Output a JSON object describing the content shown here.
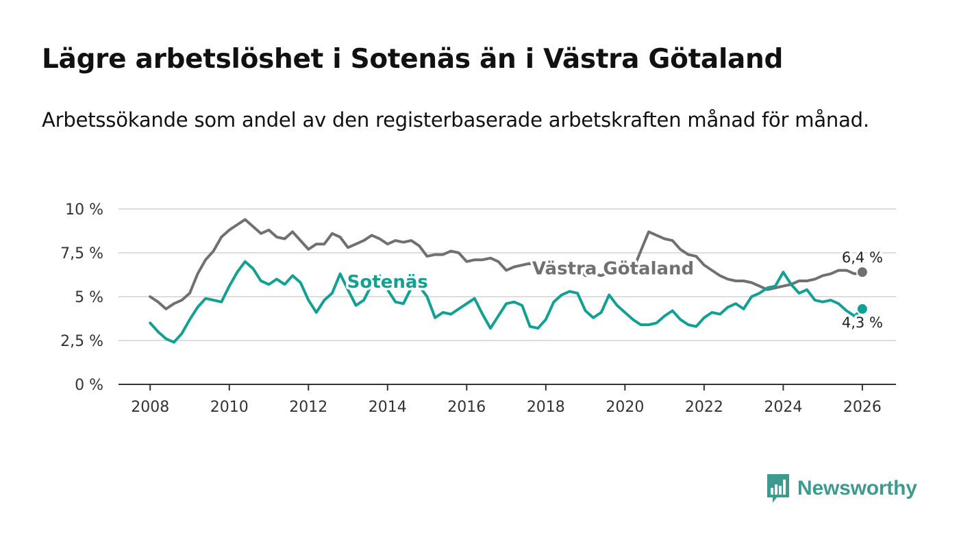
{
  "title": "Lägre arbetslöshet i Sotenäs än i Västra Götaland",
  "subtitle": "Arbetssökande som andel av den registerbaserade arbetskraften månad för månad.",
  "brand": "Newsworthy",
  "colors": {
    "vg": "#707073",
    "sotenas": "#13a094",
    "grid": "#dddddd",
    "axis": "#333333",
    "brand": "#3d9a8e"
  },
  "chart_data": {
    "type": "line",
    "title": "Lägre arbetslöshet i Sotenäs än i Västra Götaland",
    "xlabel": "",
    "ylabel": "",
    "xlim": [
      2007.2,
      2026.85
    ],
    "ylim": [
      0,
      10
    ],
    "x_ticks": [
      2008,
      2010,
      2012,
      2014,
      2016,
      2018,
      2020,
      2022,
      2024,
      2026
    ],
    "x_tick_labels": [
      "2008",
      "2010",
      "2012",
      "2014",
      "2016",
      "2018",
      "2020",
      "2022",
      "2024",
      "2026"
    ],
    "y_ticks": [
      0,
      2.5,
      5,
      7.5,
      10
    ],
    "y_tick_labels": [
      "0 %",
      "2,5 %",
      "5 %",
      "7,5 %",
      "10 %"
    ],
    "series": [
      {
        "name": "Västra Götaland",
        "label": "Västra Götaland",
        "end_label": "6,4 %",
        "end_value": 6.4,
        "color": "#707073",
        "points": [
          [
            2008.0,
            5.0
          ],
          [
            2008.2,
            4.7
          ],
          [
            2008.4,
            4.3
          ],
          [
            2008.6,
            4.6
          ],
          [
            2008.8,
            4.8
          ],
          [
            2009.0,
            5.2
          ],
          [
            2009.2,
            6.3
          ],
          [
            2009.4,
            7.1
          ],
          [
            2009.6,
            7.6
          ],
          [
            2009.8,
            8.4
          ],
          [
            2010.0,
            8.8
          ],
          [
            2010.2,
            9.1
          ],
          [
            2010.4,
            9.4
          ],
          [
            2010.6,
            9.0
          ],
          [
            2010.8,
            8.6
          ],
          [
            2011.0,
            8.8
          ],
          [
            2011.2,
            8.4
          ],
          [
            2011.4,
            8.3
          ],
          [
            2011.6,
            8.7
          ],
          [
            2011.8,
            8.2
          ],
          [
            2012.0,
            7.7
          ],
          [
            2012.2,
            8.0
          ],
          [
            2012.4,
            8.0
          ],
          [
            2012.6,
            8.6
          ],
          [
            2012.8,
            8.4
          ],
          [
            2013.0,
            7.8
          ],
          [
            2013.2,
            8.0
          ],
          [
            2013.4,
            8.2
          ],
          [
            2013.6,
            8.5
          ],
          [
            2013.8,
            8.3
          ],
          [
            2014.0,
            8.0
          ],
          [
            2014.2,
            8.2
          ],
          [
            2014.4,
            8.1
          ],
          [
            2014.6,
            8.2
          ],
          [
            2014.8,
            7.9
          ],
          [
            2015.0,
            7.3
          ],
          [
            2015.2,
            7.4
          ],
          [
            2015.4,
            7.4
          ],
          [
            2015.6,
            7.6
          ],
          [
            2015.8,
            7.5
          ],
          [
            2016.0,
            7.0
          ],
          [
            2016.2,
            7.1
          ],
          [
            2016.4,
            7.1
          ],
          [
            2016.6,
            7.2
          ],
          [
            2016.8,
            7.0
          ],
          [
            2017.0,
            6.5
          ],
          [
            2017.2,
            6.7
          ],
          [
            2017.4,
            6.8
          ],
          [
            2017.6,
            6.9
          ],
          [
            2017.8,
            6.7
          ],
          [
            2018.0,
            6.3
          ],
          [
            2018.2,
            6.5
          ],
          [
            2018.4,
            6.4
          ],
          [
            2018.6,
            6.5
          ],
          [
            2018.8,
            6.6
          ],
          [
            2019.0,
            6.2
          ],
          [
            2019.2,
            6.3
          ],
          [
            2019.4,
            6.2
          ],
          [
            2019.6,
            6.4
          ],
          [
            2019.8,
            6.5
          ],
          [
            2020.0,
            6.3
          ],
          [
            2020.2,
            6.5
          ],
          [
            2020.4,
            7.6
          ],
          [
            2020.6,
            8.7
          ],
          [
            2020.8,
            8.5
          ],
          [
            2021.0,
            8.3
          ],
          [
            2021.2,
            8.2
          ],
          [
            2021.4,
            7.7
          ],
          [
            2021.6,
            7.4
          ],
          [
            2021.8,
            7.3
          ],
          [
            2022.0,
            6.8
          ],
          [
            2022.2,
            6.5
          ],
          [
            2022.4,
            6.2
          ],
          [
            2022.6,
            6.0
          ],
          [
            2022.8,
            5.9
          ],
          [
            2023.0,
            5.9
          ],
          [
            2023.2,
            5.8
          ],
          [
            2023.4,
            5.6
          ],
          [
            2023.6,
            5.4
          ],
          [
            2023.8,
            5.5
          ],
          [
            2024.0,
            5.6
          ],
          [
            2024.2,
            5.7
          ],
          [
            2024.4,
            5.9
          ],
          [
            2024.6,
            5.9
          ],
          [
            2024.8,
            6.0
          ],
          [
            2025.0,
            6.2
          ],
          [
            2025.2,
            6.3
          ],
          [
            2025.4,
            6.5
          ],
          [
            2025.6,
            6.5
          ],
          [
            2025.8,
            6.3
          ],
          [
            2026.0,
            6.4
          ]
        ]
      },
      {
        "name": "Sotenäs",
        "label": "Sotenäs",
        "end_label": "4,3 %",
        "end_value": 4.3,
        "color": "#13a094",
        "points": [
          [
            2008.0,
            3.5
          ],
          [
            2008.2,
            3.0
          ],
          [
            2008.4,
            2.6
          ],
          [
            2008.6,
            2.4
          ],
          [
            2008.8,
            2.9
          ],
          [
            2009.0,
            3.7
          ],
          [
            2009.2,
            4.4
          ],
          [
            2009.4,
            4.9
          ],
          [
            2009.6,
            4.8
          ],
          [
            2009.8,
            4.7
          ],
          [
            2010.0,
            5.6
          ],
          [
            2010.2,
            6.4
          ],
          [
            2010.4,
            7.0
          ],
          [
            2010.6,
            6.6
          ],
          [
            2010.8,
            5.9
          ],
          [
            2011.0,
            5.7
          ],
          [
            2011.2,
            6.0
          ],
          [
            2011.4,
            5.7
          ],
          [
            2011.6,
            6.2
          ],
          [
            2011.8,
            5.8
          ],
          [
            2012.0,
            4.8
          ],
          [
            2012.2,
            4.1
          ],
          [
            2012.4,
            4.8
          ],
          [
            2012.6,
            5.2
          ],
          [
            2012.8,
            6.3
          ],
          [
            2013.0,
            5.4
          ],
          [
            2013.2,
            4.5
          ],
          [
            2013.4,
            4.8
          ],
          [
            2013.6,
            5.7
          ],
          [
            2013.8,
            6.2
          ],
          [
            2014.0,
            5.4
          ],
          [
            2014.2,
            4.7
          ],
          [
            2014.4,
            4.6
          ],
          [
            2014.6,
            5.5
          ],
          [
            2014.8,
            5.6
          ],
          [
            2015.0,
            5.0
          ],
          [
            2015.2,
            3.8
          ],
          [
            2015.4,
            4.1
          ],
          [
            2015.6,
            4.0
          ],
          [
            2015.8,
            4.3
          ],
          [
            2016.0,
            4.6
          ],
          [
            2016.2,
            4.9
          ],
          [
            2016.4,
            4.0
          ],
          [
            2016.6,
            3.2
          ],
          [
            2016.8,
            3.9
          ],
          [
            2017.0,
            4.6
          ],
          [
            2017.2,
            4.7
          ],
          [
            2017.4,
            4.5
          ],
          [
            2017.6,
            3.3
          ],
          [
            2017.8,
            3.2
          ],
          [
            2018.0,
            3.7
          ],
          [
            2018.2,
            4.7
          ],
          [
            2018.4,
            5.1
          ],
          [
            2018.6,
            5.3
          ],
          [
            2018.8,
            5.2
          ],
          [
            2019.0,
            4.2
          ],
          [
            2019.2,
            3.8
          ],
          [
            2019.4,
            4.1
          ],
          [
            2019.6,
            5.1
          ],
          [
            2019.8,
            4.5
          ],
          [
            2020.0,
            4.1
          ],
          [
            2020.2,
            3.7
          ],
          [
            2020.4,
            3.4
          ],
          [
            2020.6,
            3.4
          ],
          [
            2020.8,
            3.5
          ],
          [
            2021.0,
            3.9
          ],
          [
            2021.2,
            4.2
          ],
          [
            2021.4,
            3.7
          ],
          [
            2021.6,
            3.4
          ],
          [
            2021.8,
            3.3
          ],
          [
            2022.0,
            3.8
          ],
          [
            2022.2,
            4.1
          ],
          [
            2022.4,
            4.0
          ],
          [
            2022.6,
            4.4
          ],
          [
            2022.8,
            4.6
          ],
          [
            2023.0,
            4.3
          ],
          [
            2023.2,
            5.0
          ],
          [
            2023.4,
            5.2
          ],
          [
            2023.6,
            5.5
          ],
          [
            2023.8,
            5.6
          ],
          [
            2024.0,
            6.4
          ],
          [
            2024.2,
            5.7
          ],
          [
            2024.4,
            5.2
          ],
          [
            2024.6,
            5.4
          ],
          [
            2024.8,
            4.8
          ],
          [
            2025.0,
            4.7
          ],
          [
            2025.2,
            4.8
          ],
          [
            2025.4,
            4.6
          ],
          [
            2025.6,
            4.2
          ],
          [
            2025.8,
            3.9
          ],
          [
            2026.0,
            4.3
          ]
        ]
      }
    ]
  }
}
